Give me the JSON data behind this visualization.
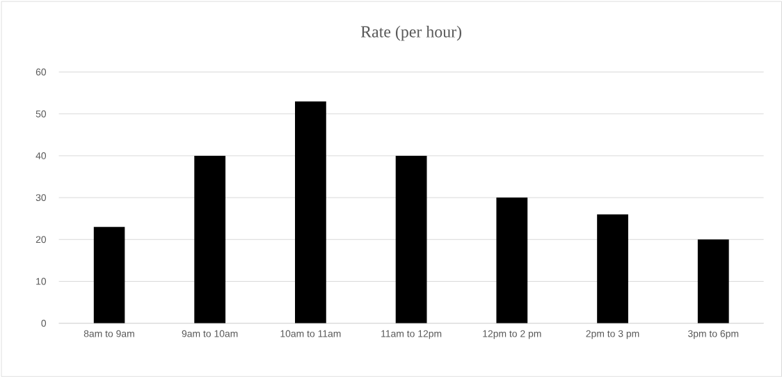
{
  "chart_data": {
    "type": "bar",
    "title": "Rate (per hour)",
    "categories": [
      "8am to 9am",
      "9am to 10am",
      "10am to 11am",
      "11am to 12pm",
      "12pm to 2 pm",
      "2pm to 3 pm",
      "3pm to 6pm"
    ],
    "values": [
      23,
      40,
      53,
      40,
      30,
      26,
      20
    ],
    "color": "#000000",
    "ylim": [
      0,
      60
    ],
    "yticks": [
      0,
      10,
      20,
      30,
      40,
      50,
      60
    ],
    "grid": "y"
  }
}
